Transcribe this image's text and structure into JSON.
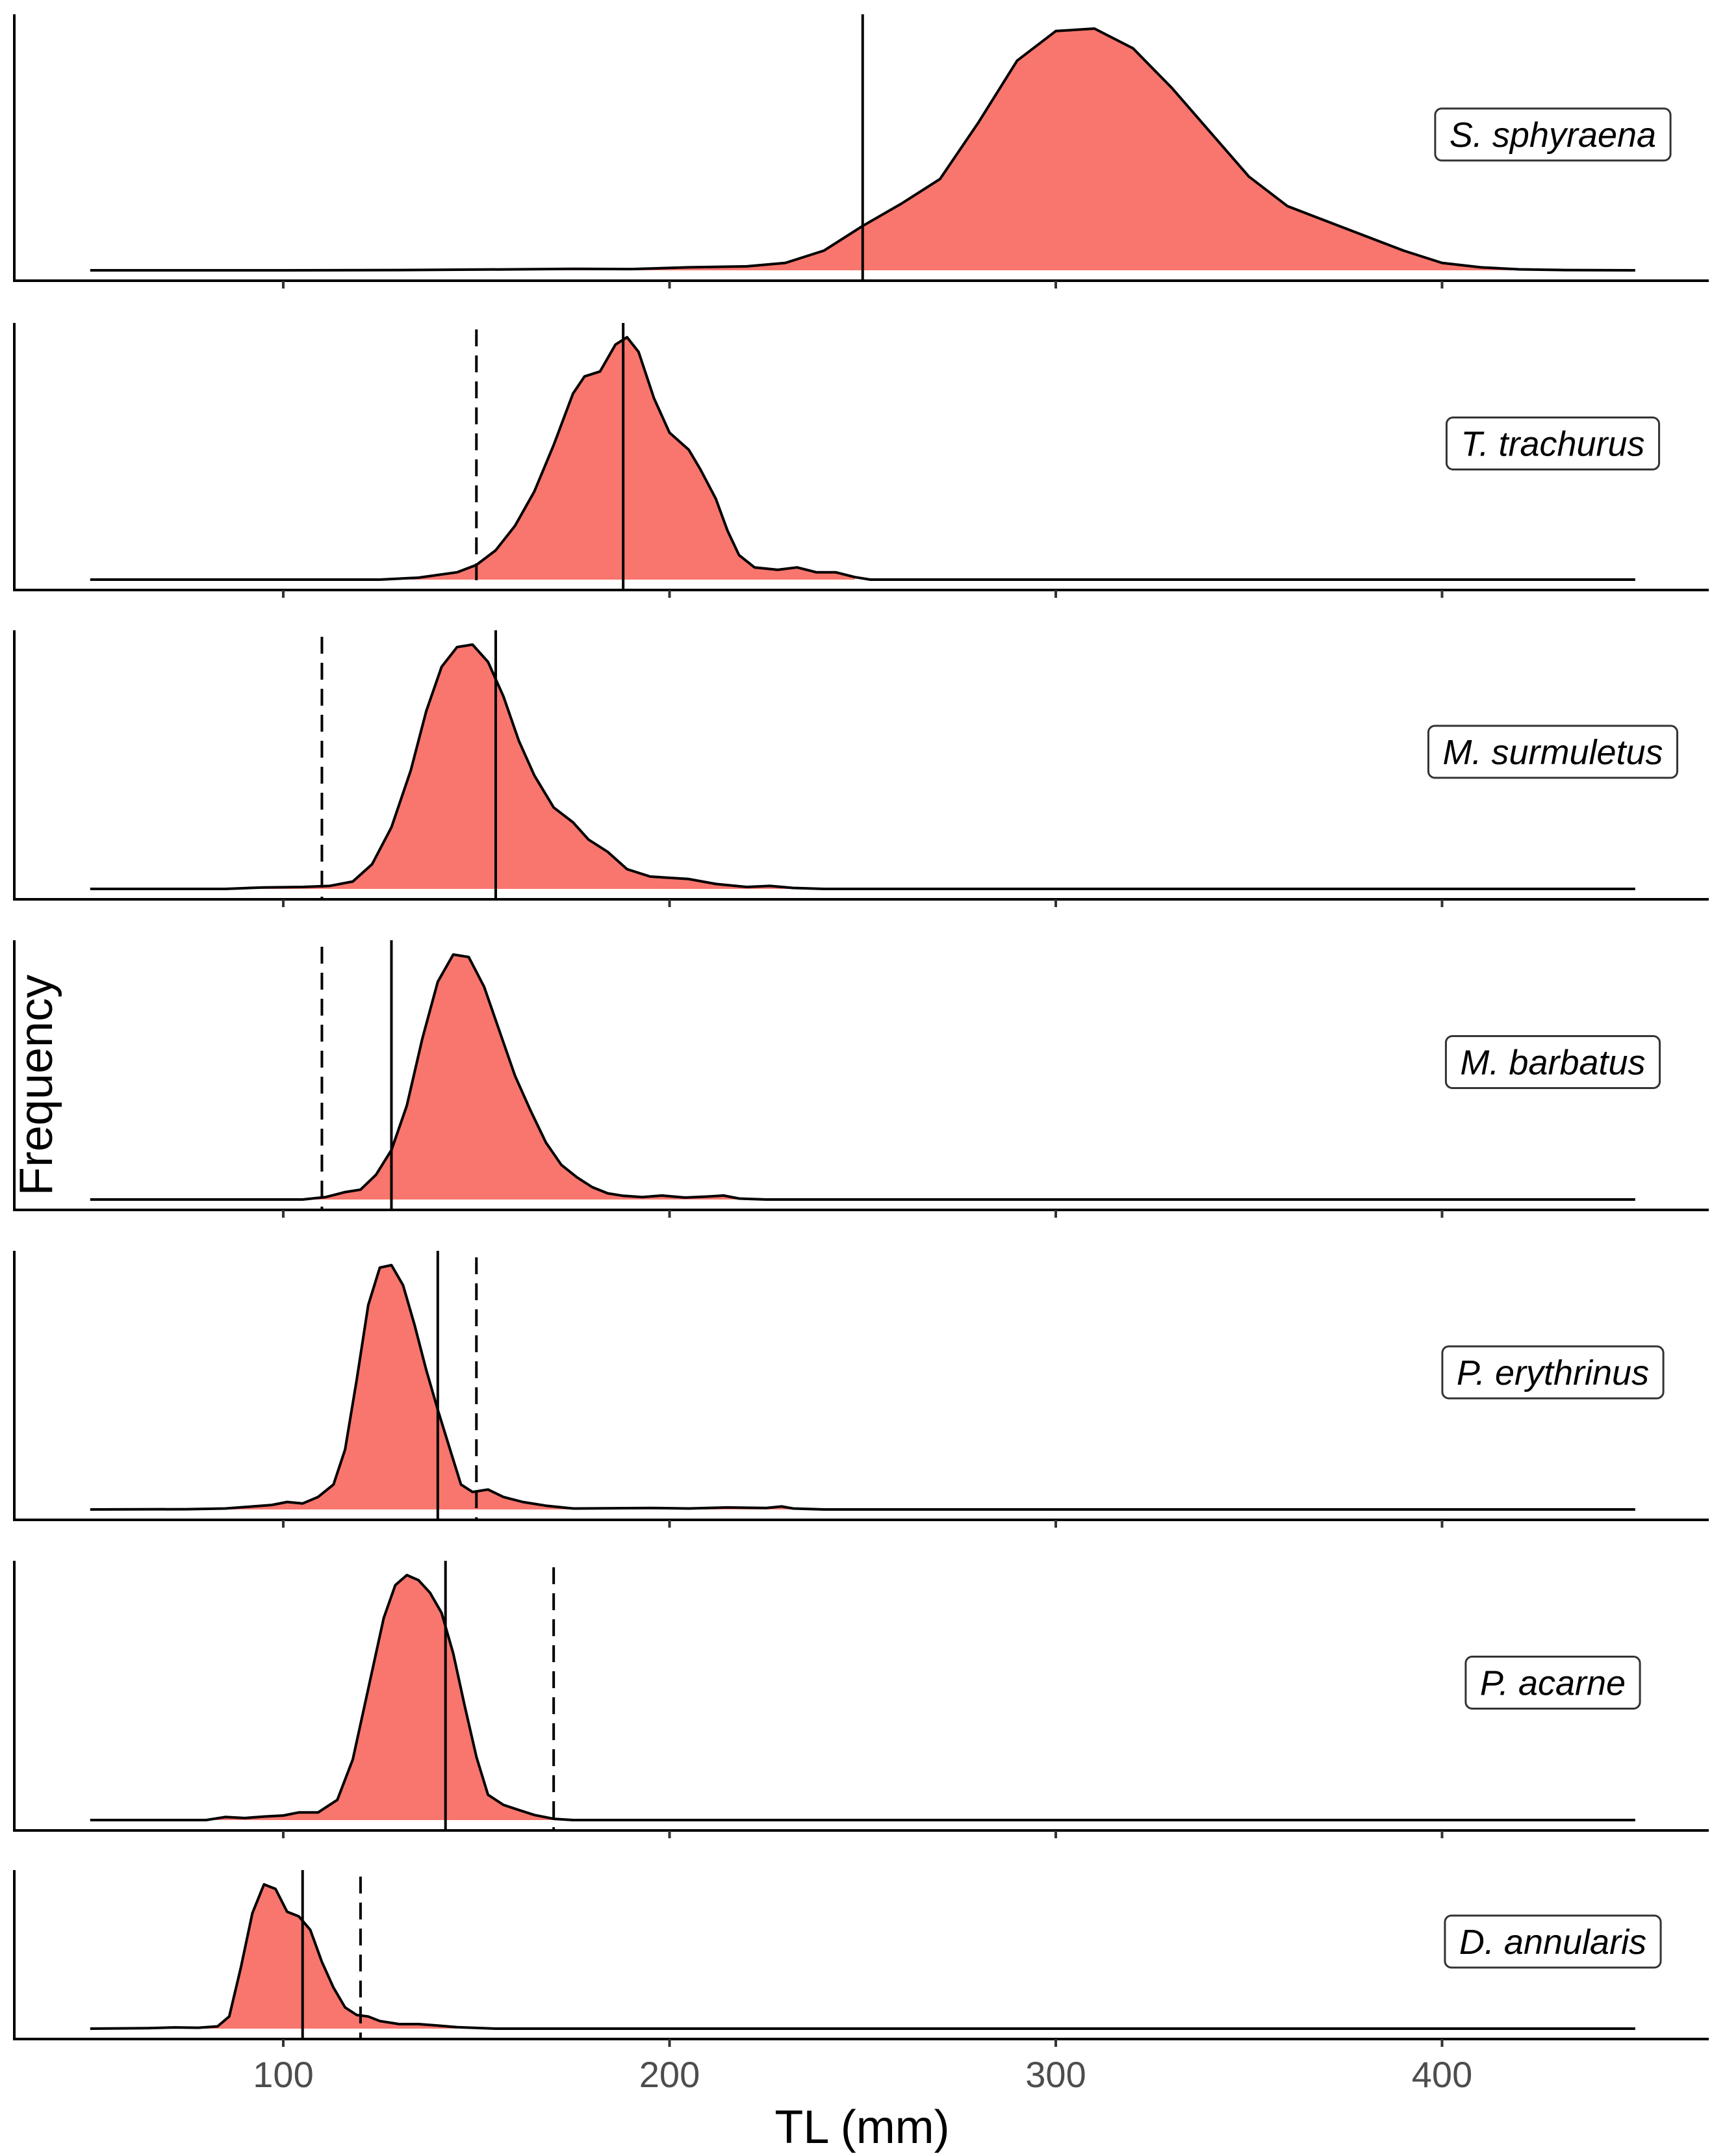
{
  "chart_data": {
    "type": "area",
    "subtype": "stacked density ridges with reference lines",
    "xlabel": "TL (mm)",
    "ylabel": "Frequency",
    "xlim": [
      30,
      470
    ],
    "x_ticks": [
      100,
      200,
      300,
      400
    ],
    "x_tick_labels": [
      "100",
      "200",
      "300",
      "400"
    ],
    "fill_color": "#F8766D",
    "line_color": "#000000",
    "legend": "none",
    "grid": false,
    "panels": [
      {
        "label": "S. sphyraena",
        "x_range": [
          50,
          450
        ],
        "fill_range": [
          50,
          432
        ],
        "solid_line": 250,
        "dashed_line": null,
        "density": [
          [
            50,
            0
          ],
          [
            100,
            0
          ],
          [
            130,
            0.001
          ],
          [
            160,
            0.004
          ],
          [
            175,
            0.006
          ],
          [
            190,
            0.005
          ],
          [
            205,
            0.012
          ],
          [
            220,
            0.016
          ],
          [
            230,
            0.03
          ],
          [
            240,
            0.08
          ],
          [
            250,
            0.18
          ],
          [
            260,
            0.27
          ],
          [
            270,
            0.37
          ],
          [
            280,
            0.6
          ],
          [
            290,
            0.85
          ],
          [
            300,
            0.97
          ],
          [
            310,
            0.98
          ],
          [
            320,
            0.9
          ],
          [
            330,
            0.74
          ],
          [
            340,
            0.56
          ],
          [
            350,
            0.38
          ],
          [
            360,
            0.26
          ],
          [
            370,
            0.2
          ],
          [
            380,
            0.14
          ],
          [
            390,
            0.08
          ],
          [
            400,
            0.03
          ],
          [
            410,
            0.012
          ],
          [
            420,
            0.004
          ],
          [
            432,
            0.001
          ],
          [
            450,
            0
          ]
        ]
      },
      {
        "label": "T. trachurus",
        "x_range": [
          50,
          450
        ],
        "fill_range": [
          50,
          250
        ],
        "solid_line": 188,
        "dashed_line": 150,
        "density": [
          [
            50,
            0
          ],
          [
            125,
            0
          ],
          [
            135,
            0.008
          ],
          [
            145,
            0.03
          ],
          [
            150,
            0.06
          ],
          [
            155,
            0.12
          ],
          [
            160,
            0.22
          ],
          [
            165,
            0.36
          ],
          [
            170,
            0.55
          ],
          [
            175,
            0.76
          ],
          [
            178,
            0.83
          ],
          [
            182,
            0.85
          ],
          [
            186,
            0.96
          ],
          [
            189,
            0.99
          ],
          [
            192,
            0.93
          ],
          [
            196,
            0.74
          ],
          [
            200,
            0.6
          ],
          [
            205,
            0.53
          ],
          [
            208,
            0.45
          ],
          [
            212,
            0.33
          ],
          [
            215,
            0.2
          ],
          [
            218,
            0.1
          ],
          [
            222,
            0.05
          ],
          [
            228,
            0.04
          ],
          [
            233,
            0.05
          ],
          [
            238,
            0.03
          ],
          [
            243,
            0.03
          ],
          [
            248,
            0.01
          ],
          [
            252,
            0
          ],
          [
            450,
            0
          ]
        ]
      },
      {
        "label": "M. surmuletus",
        "x_range": [
          50,
          450
        ],
        "fill_range": [
          50,
          232
        ],
        "solid_line": 155,
        "dashed_line": 110,
        "density": [
          [
            50,
            0
          ],
          [
            85,
            0
          ],
          [
            95,
            0.006
          ],
          [
            105,
            0.008
          ],
          [
            112,
            0.012
          ],
          [
            118,
            0.03
          ],
          [
            123,
            0.1
          ],
          [
            128,
            0.25
          ],
          [
            133,
            0.48
          ],
          [
            137,
            0.72
          ],
          [
            141,
            0.9
          ],
          [
            145,
            0.98
          ],
          [
            149,
            0.99
          ],
          [
            153,
            0.92
          ],
          [
            157,
            0.78
          ],
          [
            161,
            0.6
          ],
          [
            165,
            0.46
          ],
          [
            170,
            0.33
          ],
          [
            175,
            0.27
          ],
          [
            179,
            0.2
          ],
          [
            184,
            0.15
          ],
          [
            189,
            0.08
          ],
          [
            195,
            0.05
          ],
          [
            205,
            0.04
          ],
          [
            212,
            0.02
          ],
          [
            220,
            0.008
          ],
          [
            226,
            0.012
          ],
          [
            232,
            0.004
          ],
          [
            240,
            0
          ],
          [
            450,
            0
          ]
        ]
      },
      {
        "label": "M. barbatus",
        "x_range": [
          50,
          450
        ],
        "fill_range": [
          50,
          218
        ],
        "solid_line": 128,
        "dashed_line": 110,
        "density": [
          [
            50,
            0
          ],
          [
            105,
            0
          ],
          [
            111,
            0.01
          ],
          [
            116,
            0.03
          ],
          [
            120,
            0.04
          ],
          [
            124,
            0.1
          ],
          [
            128,
            0.2
          ],
          [
            132,
            0.38
          ],
          [
            136,
            0.65
          ],
          [
            140,
            0.88
          ],
          [
            144,
            0.99
          ],
          [
            148,
            0.98
          ],
          [
            152,
            0.86
          ],
          [
            156,
            0.68
          ],
          [
            160,
            0.5
          ],
          [
            164,
            0.36
          ],
          [
            168,
            0.23
          ],
          [
            172,
            0.14
          ],
          [
            176,
            0.09
          ],
          [
            180,
            0.05
          ],
          [
            184,
            0.025
          ],
          [
            188,
            0.015
          ],
          [
            193,
            0.01
          ],
          [
            198,
            0.016
          ],
          [
            204,
            0.008
          ],
          [
            210,
            0.012
          ],
          [
            214,
            0.016
          ],
          [
            218,
            0.004
          ],
          [
            225,
            0
          ],
          [
            450,
            0
          ]
        ]
      },
      {
        "label": "P. erythrinus",
        "x_range": [
          50,
          450
        ],
        "fill_range": [
          50,
          232
        ],
        "solid_line": 140,
        "dashed_line": 150,
        "density": [
          [
            50,
            0
          ],
          [
            75,
            0.001
          ],
          [
            85,
            0.004
          ],
          [
            92,
            0.012
          ],
          [
            97,
            0.018
          ],
          [
            101,
            0.03
          ],
          [
            105,
            0.024
          ],
          [
            109,
            0.05
          ],
          [
            113,
            0.1
          ],
          [
            116,
            0.24
          ],
          [
            119,
            0.52
          ],
          [
            122,
            0.82
          ],
          [
            125,
            0.97
          ],
          [
            128,
            0.98
          ],
          [
            131,
            0.9
          ],
          [
            134,
            0.74
          ],
          [
            137,
            0.56
          ],
          [
            140,
            0.4
          ],
          [
            143,
            0.25
          ],
          [
            146,
            0.1
          ],
          [
            149,
            0.07
          ],
          [
            153,
            0.08
          ],
          [
            157,
            0.05
          ],
          [
            162,
            0.03
          ],
          [
            168,
            0.015
          ],
          [
            175,
            0.004
          ],
          [
            195,
            0.006
          ],
          [
            205,
            0.004
          ],
          [
            215,
            0.008
          ],
          [
            225,
            0.006
          ],
          [
            229,
            0.012
          ],
          [
            232,
            0.004
          ],
          [
            240,
            0
          ],
          [
            450,
            0
          ]
        ]
      },
      {
        "label": "P. acarne",
        "x_range": [
          50,
          450
        ],
        "fill_range": [
          50,
          170
        ],
        "solid_line": 142,
        "dashed_line": 170,
        "density": [
          [
            50,
            0
          ],
          [
            80,
            0
          ],
          [
            85,
            0.012
          ],
          [
            90,
            0.008
          ],
          [
            95,
            0.014
          ],
          [
            100,
            0.018
          ],
          [
            104,
            0.03
          ],
          [
            109,
            0.03
          ],
          [
            114,
            0.08
          ],
          [
            118,
            0.24
          ],
          [
            122,
            0.52
          ],
          [
            126,
            0.8
          ],
          [
            129,
            0.93
          ],
          [
            132,
            0.97
          ],
          [
            135,
            0.95
          ],
          [
            138,
            0.9
          ],
          [
            141,
            0.82
          ],
          [
            144,
            0.66
          ],
          [
            147,
            0.45
          ],
          [
            150,
            0.25
          ],
          [
            153,
            0.1
          ],
          [
            157,
            0.06
          ],
          [
            161,
            0.04
          ],
          [
            165,
            0.02
          ],
          [
            170,
            0.005
          ],
          [
            175,
            0
          ],
          [
            450,
            0
          ]
        ]
      },
      {
        "label": "D. annularis",
        "x_range": [
          50,
          450
        ],
        "fill_range": [
          50,
          145
        ],
        "solid_line": 105,
        "dashed_line": 120,
        "density": [
          [
            50,
            0
          ],
          [
            65,
            0.003
          ],
          [
            72,
            0.008
          ],
          [
            78,
            0.006
          ],
          [
            83,
            0.015
          ],
          [
            86,
            0.08
          ],
          [
            89,
            0.4
          ],
          [
            92,
            0.76
          ],
          [
            95,
            0.95
          ],
          [
            98,
            0.92
          ],
          [
            101,
            0.77
          ],
          [
            104,
            0.74
          ],
          [
            107,
            0.65
          ],
          [
            110,
            0.44
          ],
          [
            113,
            0.27
          ],
          [
            116,
            0.14
          ],
          [
            119,
            0.09
          ],
          [
            122,
            0.08
          ],
          [
            125,
            0.05
          ],
          [
            130,
            0.03
          ],
          [
            135,
            0.03
          ],
          [
            140,
            0.02
          ],
          [
            145,
            0.01
          ],
          [
            155,
            0
          ],
          [
            450,
            0
          ]
        ]
      }
    ]
  }
}
